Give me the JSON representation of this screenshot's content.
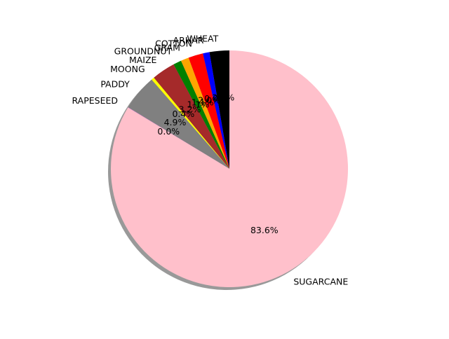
{
  "chart_data": {
    "type": "pie",
    "title": "",
    "shadow": true,
    "legend": "none",
    "categories": [
      "WHEAT",
      "ARHAR",
      "COTTON",
      "GRAM",
      "GROUNDNUT",
      "MAIZE",
      "MOONG",
      "PADDY",
      "RAPESEED",
      "SUGARCANE"
    ],
    "percent_labels": [
      "2.7%",
      "0.9%",
      "2.0%",
      "1.1%",
      "1.1%",
      "3.2%",
      "0.4%",
      "4.9%",
      "0.0%",
      "83.6%"
    ],
    "values": [
      2.7,
      0.9,
      2.0,
      1.1,
      1.1,
      3.2,
      0.4,
      4.9,
      0.04,
      83.6
    ],
    "colors": [
      "#000000",
      "#0000ff",
      "#ff0000",
      "#ffa500",
      "#008000",
      "#a52a2a",
      "#ffff00",
      "#808080",
      "#ee82ee",
      "#ffc0cb"
    ]
  }
}
